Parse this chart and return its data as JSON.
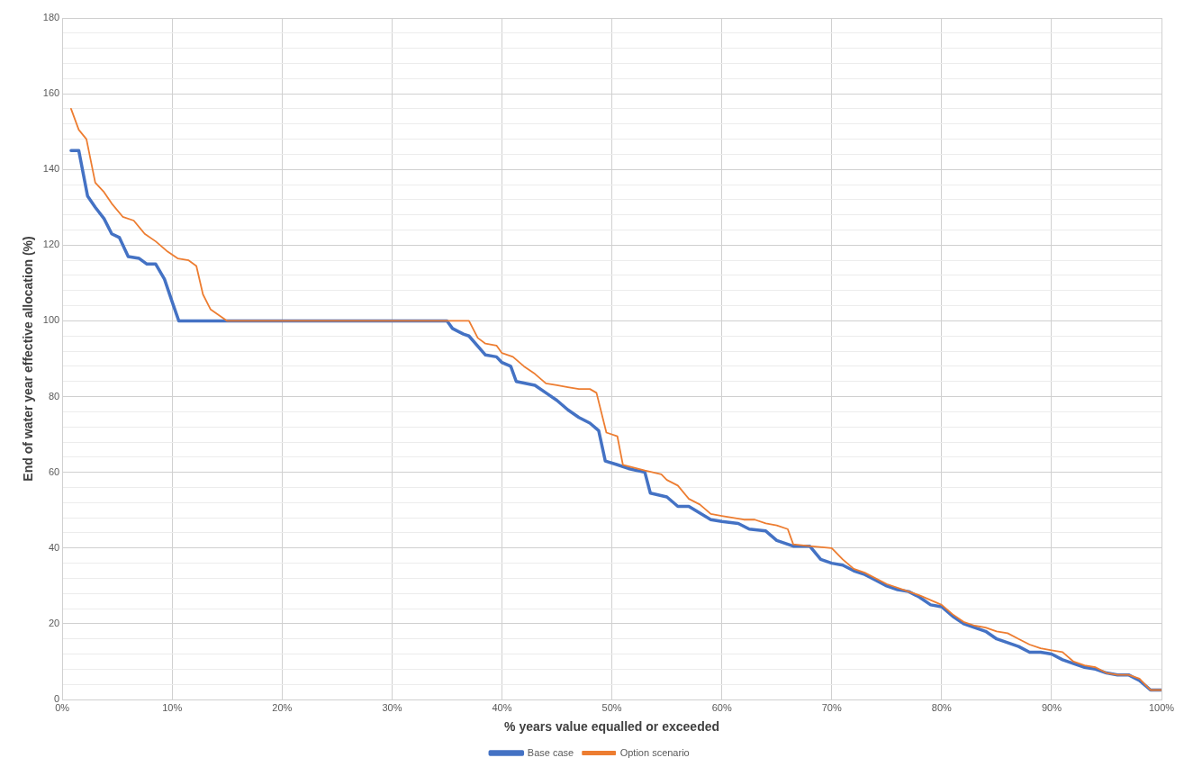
{
  "chart_data": {
    "type": "line",
    "xlabel": "% years value equalled or exceeded",
    "ylabel": "End of water year effective allocation (%)",
    "xlim": [
      0,
      100
    ],
    "xticks": [
      {
        "value": 0,
        "label": "0%"
      },
      {
        "value": 10,
        "label": "10%"
      },
      {
        "value": 20,
        "label": "20%"
      },
      {
        "value": 30,
        "label": "30%"
      },
      {
        "value": 40,
        "label": "40%"
      },
      {
        "value": 50,
        "label": "50%"
      },
      {
        "value": 60,
        "label": "60%"
      },
      {
        "value": 70,
        "label": "70%"
      },
      {
        "value": 80,
        "label": "80%"
      },
      {
        "value": 90,
        "label": "90%"
      },
      {
        "value": 100,
        "label": "100%"
      }
    ],
    "ylim": [
      0,
      180
    ],
    "yticks": [
      0,
      {
        "value": 4,
        "label": null
      },
      {
        "value": 8,
        "label": null
      },
      {
        "value": 12,
        "label": null
      },
      {
        "value": 16,
        "label": null
      },
      20,
      {
        "value": 24,
        "label": null
      },
      {
        "value": 28,
        "label": null
      },
      {
        "value": 32,
        "label": null
      },
      {
        "value": 36,
        "label": null
      },
      40,
      {
        "value": 44,
        "label": null
      },
      {
        "value": 48,
        "label": null
      },
      {
        "value": 52,
        "label": null
      },
      {
        "value": 56,
        "label": null
      },
      60,
      {
        "value": 64,
        "label": null
      },
      {
        "value": 68,
        "label": null
      },
      {
        "value": 72,
        "label": null
      },
      {
        "value": 76,
        "label": null
      },
      80,
      {
        "value": 84,
        "label": null
      },
      {
        "value": 88,
        "label": null
      },
      {
        "value": 92,
        "label": null
      },
      {
        "value": 96,
        "label": null
      },
      100,
      {
        "value": 104,
        "label": null
      },
      {
        "value": 108,
        "label": null
      },
      {
        "value": 112,
        "label": null
      },
      {
        "value": 116,
        "label": null
      },
      120,
      {
        "value": 124,
        "label": null
      },
      {
        "value": 128,
        "label": null
      },
      {
        "value": 132,
        "label": null
      },
      {
        "value": 136,
        "label": null
      },
      140,
      {
        "value": 144,
        "label": null
      },
      {
        "value": 148,
        "label": null
      },
      {
        "value": 152,
        "label": null
      },
      {
        "value": 156,
        "label": null
      },
      160,
      {
        "value": 164,
        "label": null
      },
      {
        "value": 168,
        "label": null
      },
      {
        "value": 172,
        "label": null
      },
      {
        "value": 176,
        "label": null
      },
      180
    ],
    "grid": true,
    "legend": "bottom",
    "marker": "none",
    "line_style": "solid",
    "series": [
      {
        "name": "Base case",
        "color": "#4472c4",
        "x": [
          0.8,
          1.5,
          2.3,
          3,
          3.8,
          4.5,
          5.2,
          6,
          7,
          7.7,
          8.5,
          9.3,
          10,
          10.6,
          35,
          35.5,
          36.5,
          37,
          38.5,
          39.5,
          40,
          40.8,
          41.3,
          43,
          44,
          45,
          46,
          47,
          48,
          48.8,
          49.4,
          50.5,
          51.5,
          53,
          53.5,
          55,
          56,
          57,
          59,
          60,
          61.5,
          62.5,
          64,
          65,
          66.5,
          68,
          69,
          70,
          71,
          72,
          73,
          74,
          75,
          76,
          77,
          78,
          79,
          80,
          81,
          82,
          83,
          84,
          85,
          86,
          87,
          88,
          89,
          90,
          91,
          92,
          93,
          94,
          95,
          96,
          97,
          98,
          99,
          100
        ],
        "values": [
          145,
          145,
          133,
          130,
          127,
          123,
          122,
          117,
          116.5,
          115,
          115,
          111,
          105,
          100,
          100,
          98,
          96.5,
          96,
          91,
          90.5,
          89,
          88,
          84,
          83,
          81,
          79,
          76.5,
          74.5,
          73,
          71,
          63,
          62,
          61,
          60,
          54.5,
          53.5,
          51,
          51,
          47.5,
          47,
          46.5,
          45,
          44.5,
          42,
          40.5,
          40.5,
          37,
          36,
          35.5,
          34,
          33,
          31.5,
          30,
          29,
          28.5,
          27,
          25,
          24.5,
          22,
          20,
          19,
          18,
          16,
          15,
          14,
          12.5,
          12.5,
          12,
          10.5,
          9.5,
          8.5,
          8,
          7,
          6.5,
          6.5,
          5,
          2.5,
          2.5
        ]
      },
      {
        "name": "Option scenario",
        "color": "#ed7d31",
        "x": [
          0.8,
          1.5,
          2.2,
          3,
          3.8,
          4.5,
          5.5,
          6.5,
          7.5,
          8.5,
          9.5,
          10.5,
          11.5,
          12.2,
          12.8,
          13.5,
          14.5,
          15,
          37,
          37.8,
          38.5,
          39.5,
          40,
          41,
          42,
          43,
          44,
          45,
          46,
          47,
          48,
          48.6,
          49.5,
          50.5,
          51,
          53,
          54.5,
          55,
          56,
          57,
          58,
          59,
          60,
          61,
          62,
          63,
          64,
          65,
          66,
          66.5,
          68,
          70,
          71,
          72,
          73,
          75,
          77,
          78,
          80,
          81,
          82,
          83,
          84,
          85,
          86,
          87,
          88,
          89,
          90,
          91,
          92,
          93,
          94,
          95,
          96,
          97,
          98,
          99,
          100
        ],
        "values": [
          156,
          150.5,
          148,
          136.5,
          134,
          131,
          127.5,
          126.5,
          123,
          121,
          118.5,
          116.5,
          116,
          114.5,
          107,
          103,
          101,
          100,
          100,
          95.5,
          94,
          93.5,
          91.5,
          90.5,
          88,
          86,
          83.5,
          83,
          82.5,
          82,
          82,
          81,
          70.5,
          69.5,
          62,
          60.5,
          59.5,
          58,
          56.5,
          53,
          51.5,
          49,
          48.5,
          48,
          47.5,
          47.5,
          46.5,
          46,
          45,
          41,
          40.5,
          40,
          37,
          34.5,
          33.5,
          30.5,
          28.5,
          27.5,
          25,
          22.5,
          20.5,
          19.5,
          19,
          18,
          17.5,
          16,
          14.5,
          13.5,
          13,
          12.5,
          10,
          9,
          8.5,
          7,
          6.5,
          6.5,
          5.5,
          2.5,
          2.5
        ]
      }
    ]
  }
}
